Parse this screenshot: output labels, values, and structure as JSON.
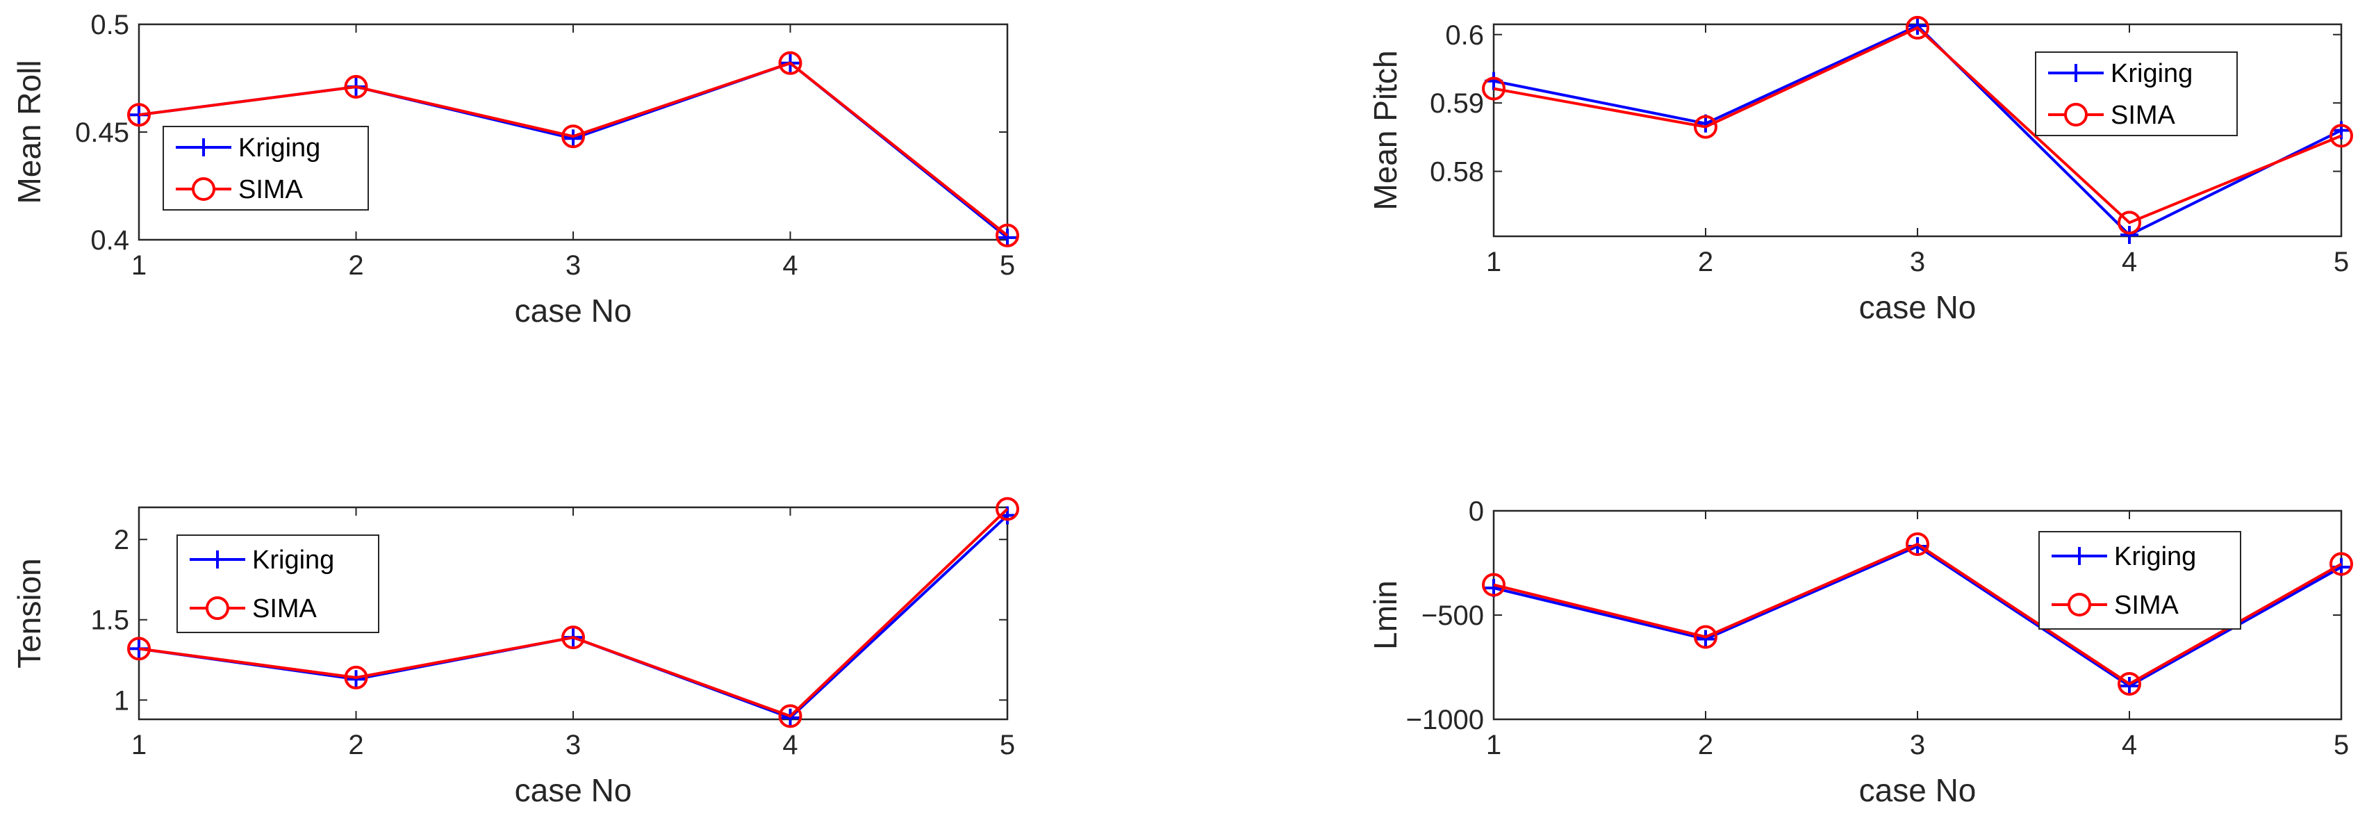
{
  "colors": {
    "kriging": "#0000ff",
    "sima": "#ff0000",
    "axis": "#262626",
    "legend_border": "#262626",
    "background": "#ffffff"
  },
  "chart_data": [
    {
      "type": "line",
      "xlabel": "case No",
      "ylabel": "Mean Roll",
      "x": [
        1,
        2,
        3,
        4,
        5
      ],
      "xlim": [
        1,
        5
      ],
      "ylim": [
        0.4,
        0.5
      ],
      "xticks": [
        "1",
        "2",
        "3",
        "4",
        "5"
      ],
      "yticks": [
        0.4,
        0.45,
        0.5
      ],
      "ytick_labels": [
        "0.4",
        "0.45",
        "0.5"
      ],
      "grid": false,
      "legend_position": "lower-left",
      "series": [
        {
          "name": "Kriging",
          "marker": "plus",
          "values": [
            0.458,
            0.471,
            0.447,
            0.482,
            0.401
          ]
        },
        {
          "name": "SIMA",
          "marker": "circle",
          "values": [
            0.458,
            0.471,
            0.448,
            0.482,
            0.402
          ]
        }
      ]
    },
    {
      "type": "line",
      "xlabel": "case No",
      "ylabel": "Mean Pitch",
      "x": [
        1,
        2,
        3,
        4,
        5
      ],
      "xlim": [
        1,
        5
      ],
      "ylim": [
        0.5705,
        0.6015
      ],
      "xticks": [
        "1",
        "2",
        "3",
        "4",
        "5"
      ],
      "yticks": [
        0.58,
        0.59,
        0.6
      ],
      "ytick_labels": [
        "0.58",
        "0.59",
        "0.6"
      ],
      "grid": false,
      "legend_position": "top-right",
      "series": [
        {
          "name": "Kriging",
          "marker": "plus",
          "values": [
            0.5932,
            0.587,
            0.6013,
            0.5707,
            0.586
          ]
        },
        {
          "name": "SIMA",
          "marker": "circle",
          "values": [
            0.5921,
            0.5865,
            0.601,
            0.5725,
            0.5852
          ]
        }
      ]
    },
    {
      "type": "line",
      "xlabel": "case No",
      "ylabel": "Tension",
      "x": [
        1,
        2,
        3,
        4,
        5
      ],
      "xlim": [
        1,
        5
      ],
      "ylim": [
        0.88,
        2.2
      ],
      "xticks": [
        "1",
        "2",
        "3",
        "4",
        "5"
      ],
      "yticks": [
        1,
        1.5,
        2
      ],
      "ytick_labels": [
        "1",
        "1.5",
        "2"
      ],
      "grid": false,
      "legend_position": "top-left",
      "series": [
        {
          "name": "Kriging",
          "marker": "plus",
          "values": [
            1.32,
            1.13,
            1.39,
            0.89,
            2.15
          ]
        },
        {
          "name": "SIMA",
          "marker": "circle",
          "values": [
            1.32,
            1.14,
            1.39,
            0.9,
            2.19
          ]
        }
      ]
    },
    {
      "type": "line",
      "xlabel": "case No",
      "ylabel": "Lmin",
      "x": [
        1,
        2,
        3,
        4,
        5
      ],
      "xlim": [
        1,
        5
      ],
      "ylim": [
        -1000,
        0
      ],
      "xticks": [
        "1",
        "2",
        "3",
        "4",
        "5"
      ],
      "yticks": [
        -1000,
        -500,
        0
      ],
      "ytick_labels": [
        "−1000",
        "−500",
        "0"
      ],
      "grid": false,
      "legend_position": "top-right",
      "series": [
        {
          "name": "Kriging",
          "marker": "plus",
          "values": [
            -370,
            -615,
            -170,
            -840,
            -270
          ]
        },
        {
          "name": "SIMA",
          "marker": "circle",
          "values": [
            -355,
            -605,
            -160,
            -830,
            -255
          ]
        }
      ]
    }
  ]
}
